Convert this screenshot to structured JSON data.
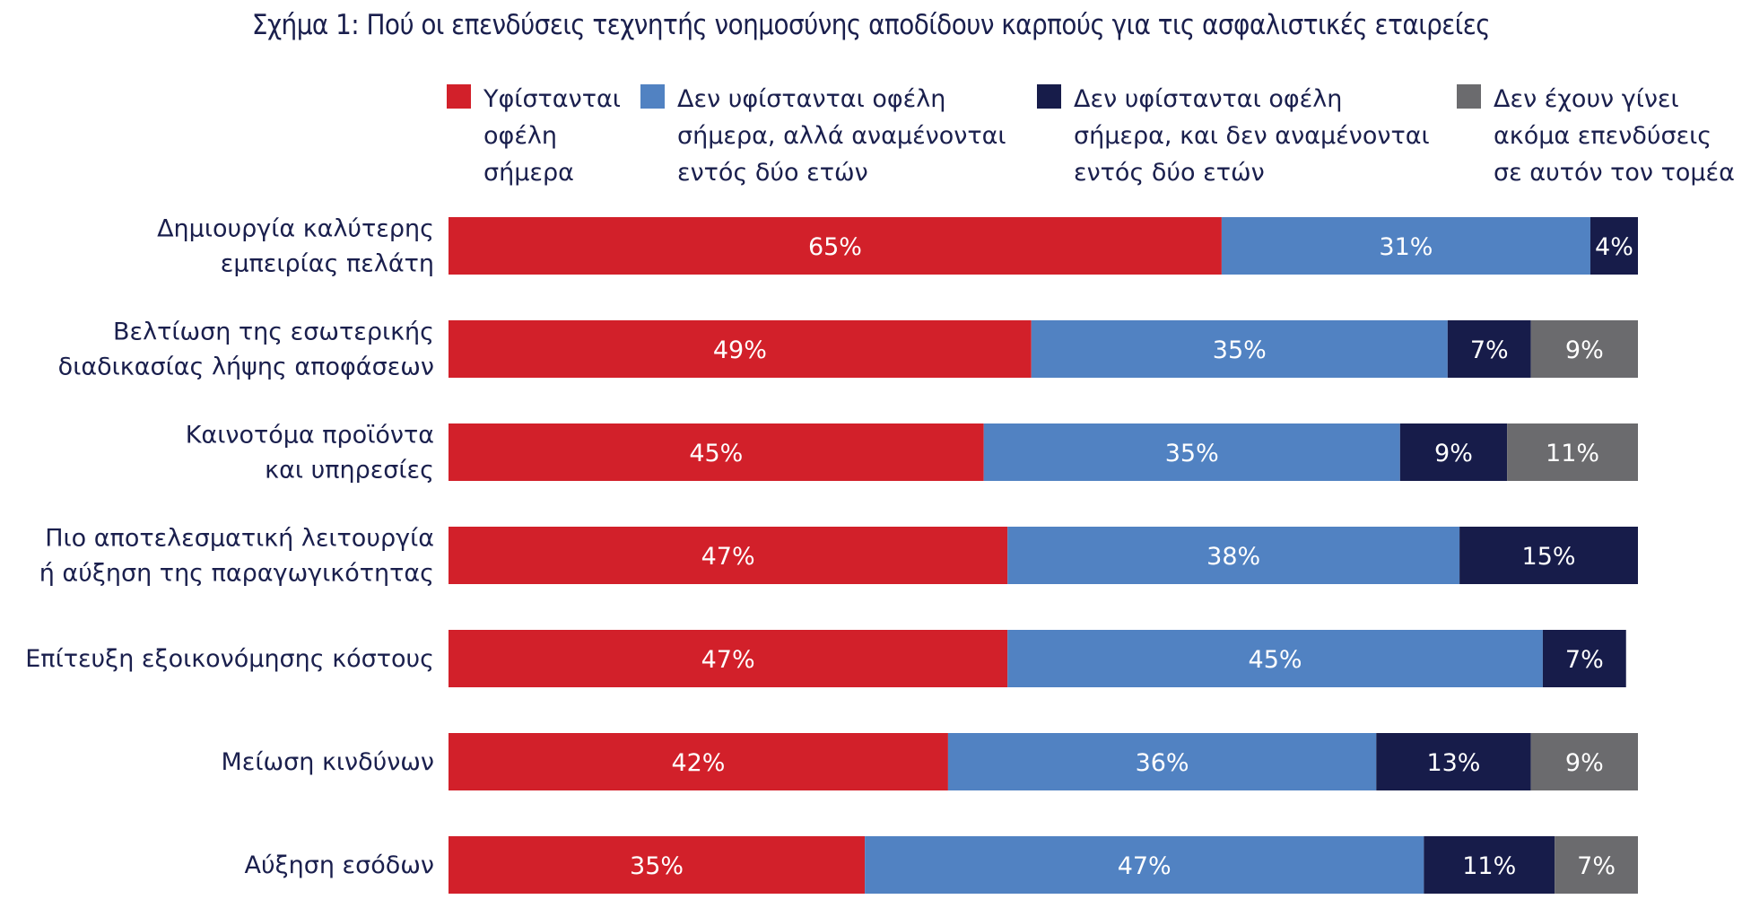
{
  "chart_data": {
    "type": "bar",
    "orientation": "horizontal",
    "stacked": true,
    "title": "Σχήμα 1: Πού οι επενδύσεις τεχνητής νοημοσύνης αποδίδουν καρπούς για τις ασφαλιστικές εταιρείες",
    "xlim": [
      0,
      100
    ],
    "grid": false,
    "legend_position": "top",
    "categories": [
      [
        "Δημιουργία καλύτερης",
        "εμπειρίας πελάτη"
      ],
      [
        "Βελτίωση της εσωτερικής",
        "διαδικασίας λήψης αποφάσεων"
      ],
      [
        "Καινοτόμα προϊόντα",
        "και υπηρεσίες"
      ],
      [
        "Πιο αποτελεσματική λειτουργία",
        "ή αύξηση της παραγωγικότητας"
      ],
      [
        "Επίτευξη εξοικονόμησης κόστους"
      ],
      [
        "Μείωση κινδύνων"
      ],
      [
        "Αύξηση εσόδων"
      ]
    ],
    "series": [
      {
        "name": "Υφίστανται οφέλη σήμερα",
        "legend_lines": [
          "Υφίστανται",
          "οφέλη",
          "σήμερα"
        ],
        "color": "#d2202a",
        "label_color": "#ffffff",
        "values": [
          65,
          49,
          45,
          47,
          47,
          42,
          35
        ]
      },
      {
        "name": "Δεν υφίστανται οφέλη σήμερα, αλλά αναμένονται εντός δύο ετών",
        "legend_lines": [
          "Δεν υφίστανται οφέλη",
          "σήμερα, αλλά αναμένονται",
          "εντός δύο ετών"
        ],
        "color": "#5182c2",
        "label_color": "#ffffff",
        "values": [
          31,
          35,
          35,
          38,
          45,
          36,
          47
        ]
      },
      {
        "name": "Δεν υφίστανται οφέλη σήμερα, και δεν αναμένονται εντός δύο ετών",
        "legend_lines": [
          "Δεν υφίστανται οφέλη",
          "σήμερα, και δεν αναμένονται",
          "εντός δύο ετών"
        ],
        "color": "#171c4a",
        "label_color": "#ffffff",
        "values": [
          4,
          7,
          9,
          15,
          7,
          13,
          11
        ]
      },
      {
        "name": "Δεν έχουν γίνει ακόμα επενδύσεις σε αυτόν τον τομέα",
        "legend_lines": [
          "Δεν έχουν γίνει",
          "ακόμα επενδύσεις",
          "σε αυτόν τον τομέα"
        ],
        "color": "#6b6b6e",
        "label_color": "#ffffff",
        "values": [
          0,
          9,
          11,
          0,
          0,
          9,
          7
        ]
      }
    ],
    "value_suffix": "%"
  }
}
